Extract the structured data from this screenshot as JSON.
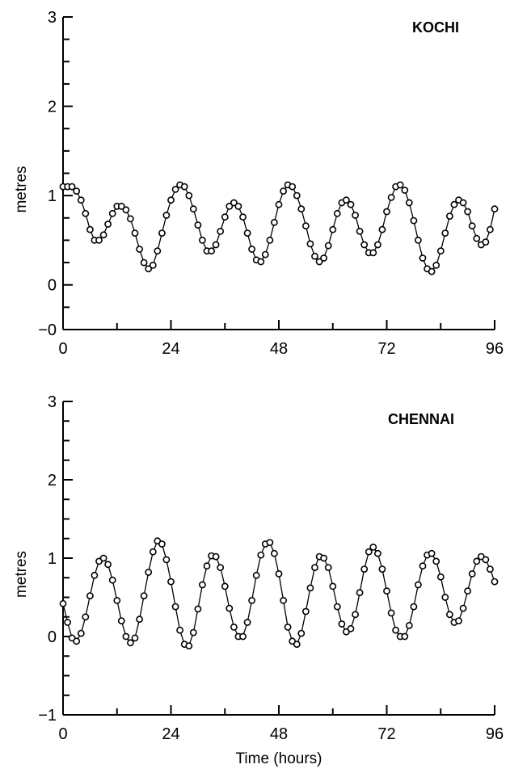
{
  "chart_data": [
    {
      "type": "line",
      "title": "KOCHI",
      "xlabel": "",
      "ylabel": "metres",
      "xlim": [
        0,
        96
      ],
      "ylim": [
        -0.5,
        3
      ],
      "x_ticks": [
        0,
        24,
        48,
        72,
        96
      ],
      "x_tick_labels": [
        "0",
        "24",
        "48",
        "72",
        "96"
      ],
      "y_ticks": [
        0,
        1,
        2,
        3
      ],
      "y_tick_labels": [
        "0",
        "1",
        "2",
        "3"
      ],
      "y_bottom_label": "−0",
      "grid": false,
      "series": [
        {
          "x": [
            0,
            1,
            2,
            3,
            4,
            5,
            6,
            7,
            8,
            9,
            10,
            11,
            12,
            13,
            14,
            15,
            16,
            17,
            18,
            19,
            20,
            21,
            22,
            23,
            24,
            25,
            26,
            27,
            28,
            29,
            30,
            31,
            32,
            33,
            34,
            35,
            36,
            37,
            38,
            39,
            40,
            41,
            42,
            43,
            44,
            45,
            46,
            47,
            48,
            49,
            50,
            51,
            52,
            53,
            54,
            55,
            56,
            57,
            58,
            59,
            60,
            61,
            62,
            63,
            64,
            65,
            66,
            67,
            68,
            69,
            70,
            71,
            72,
            73,
            74,
            75,
            76,
            77,
            78,
            79,
            80,
            81,
            82,
            83,
            84,
            85,
            86,
            87,
            88,
            89,
            90,
            91,
            92,
            93,
            94,
            95,
            96
          ],
          "values": [
            1.1,
            1.1,
            1.1,
            1.05,
            0.95,
            0.8,
            0.62,
            0.5,
            0.5,
            0.56,
            0.68,
            0.8,
            0.88,
            0.88,
            0.84,
            0.74,
            0.58,
            0.4,
            0.25,
            0.18,
            0.22,
            0.38,
            0.58,
            0.78,
            0.95,
            1.07,
            1.12,
            1.1,
            1.0,
            0.85,
            0.67,
            0.5,
            0.38,
            0.38,
            0.45,
            0.6,
            0.76,
            0.88,
            0.92,
            0.88,
            0.76,
            0.58,
            0.4,
            0.28,
            0.26,
            0.34,
            0.5,
            0.7,
            0.9,
            1.05,
            1.12,
            1.1,
            1.0,
            0.85,
            0.66,
            0.46,
            0.32,
            0.26,
            0.3,
            0.44,
            0.62,
            0.8,
            0.92,
            0.95,
            0.9,
            0.78,
            0.6,
            0.45,
            0.36,
            0.36,
            0.45,
            0.62,
            0.82,
            0.98,
            1.1,
            1.12,
            1.06,
            0.92,
            0.72,
            0.5,
            0.3,
            0.18,
            0.15,
            0.22,
            0.38,
            0.58,
            0.77,
            0.9,
            0.95,
            0.92,
            0.82,
            0.66,
            0.52,
            0.45,
            0.48,
            0.62,
            0.85
          ]
        }
      ]
    },
    {
      "type": "line",
      "title": "CHENNAI",
      "xlabel": "Time (hours)",
      "ylabel": "metres",
      "xlim": [
        0,
        96
      ],
      "ylim": [
        -1,
        3
      ],
      "x_ticks": [
        0,
        24,
        48,
        72,
        96
      ],
      "x_tick_labels": [
        "0",
        "24",
        "48",
        "72",
        "96"
      ],
      "y_ticks": [
        -1,
        0,
        1,
        2,
        3
      ],
      "y_tick_labels": [
        "−1",
        "0",
        "1",
        "2",
        "3"
      ],
      "grid": false,
      "series": [
        {
          "x": [
            0,
            1,
            2,
            3,
            4,
            5,
            6,
            7,
            8,
            9,
            10,
            11,
            12,
            13,
            14,
            15,
            16,
            17,
            18,
            19,
            20,
            21,
            22,
            23,
            24,
            25,
            26,
            27,
            28,
            29,
            30,
            31,
            32,
            33,
            34,
            35,
            36,
            37,
            38,
            39,
            40,
            41,
            42,
            43,
            44,
            45,
            46,
            47,
            48,
            49,
            50,
            51,
            52,
            53,
            54,
            55,
            56,
            57,
            58,
            59,
            60,
            61,
            62,
            63,
            64,
            65,
            66,
            67,
            68,
            69,
            70,
            71,
            72,
            73,
            74,
            75,
            76,
            77,
            78,
            79,
            80,
            81,
            82,
            83,
            84,
            85,
            86,
            87,
            88,
            89,
            90,
            91,
            92,
            93,
            94,
            95,
            96
          ],
          "values": [
            0.42,
            0.18,
            -0.02,
            -0.06,
            0.04,
            0.25,
            0.52,
            0.78,
            0.96,
            1.0,
            0.92,
            0.72,
            0.46,
            0.2,
            0.0,
            -0.08,
            -0.02,
            0.22,
            0.52,
            0.82,
            1.08,
            1.22,
            1.18,
            0.98,
            0.7,
            0.38,
            0.08,
            -0.1,
            -0.12,
            0.05,
            0.35,
            0.66,
            0.9,
            1.03,
            1.02,
            0.88,
            0.64,
            0.36,
            0.12,
            0.0,
            0.0,
            0.18,
            0.46,
            0.78,
            1.04,
            1.18,
            1.2,
            1.06,
            0.8,
            0.46,
            0.12,
            -0.06,
            -0.1,
            0.04,
            0.32,
            0.62,
            0.88,
            1.02,
            1.0,
            0.88,
            0.64,
            0.38,
            0.16,
            0.06,
            0.1,
            0.28,
            0.56,
            0.86,
            1.08,
            1.14,
            1.06,
            0.86,
            0.58,
            0.3,
            0.08,
            0.0,
            0.0,
            0.14,
            0.38,
            0.66,
            0.9,
            1.04,
            1.06,
            0.96,
            0.76,
            0.5,
            0.28,
            0.18,
            0.2,
            0.36,
            0.58,
            0.8,
            0.96,
            1.02,
            0.98,
            0.86,
            0.7
          ]
        }
      ]
    }
  ]
}
